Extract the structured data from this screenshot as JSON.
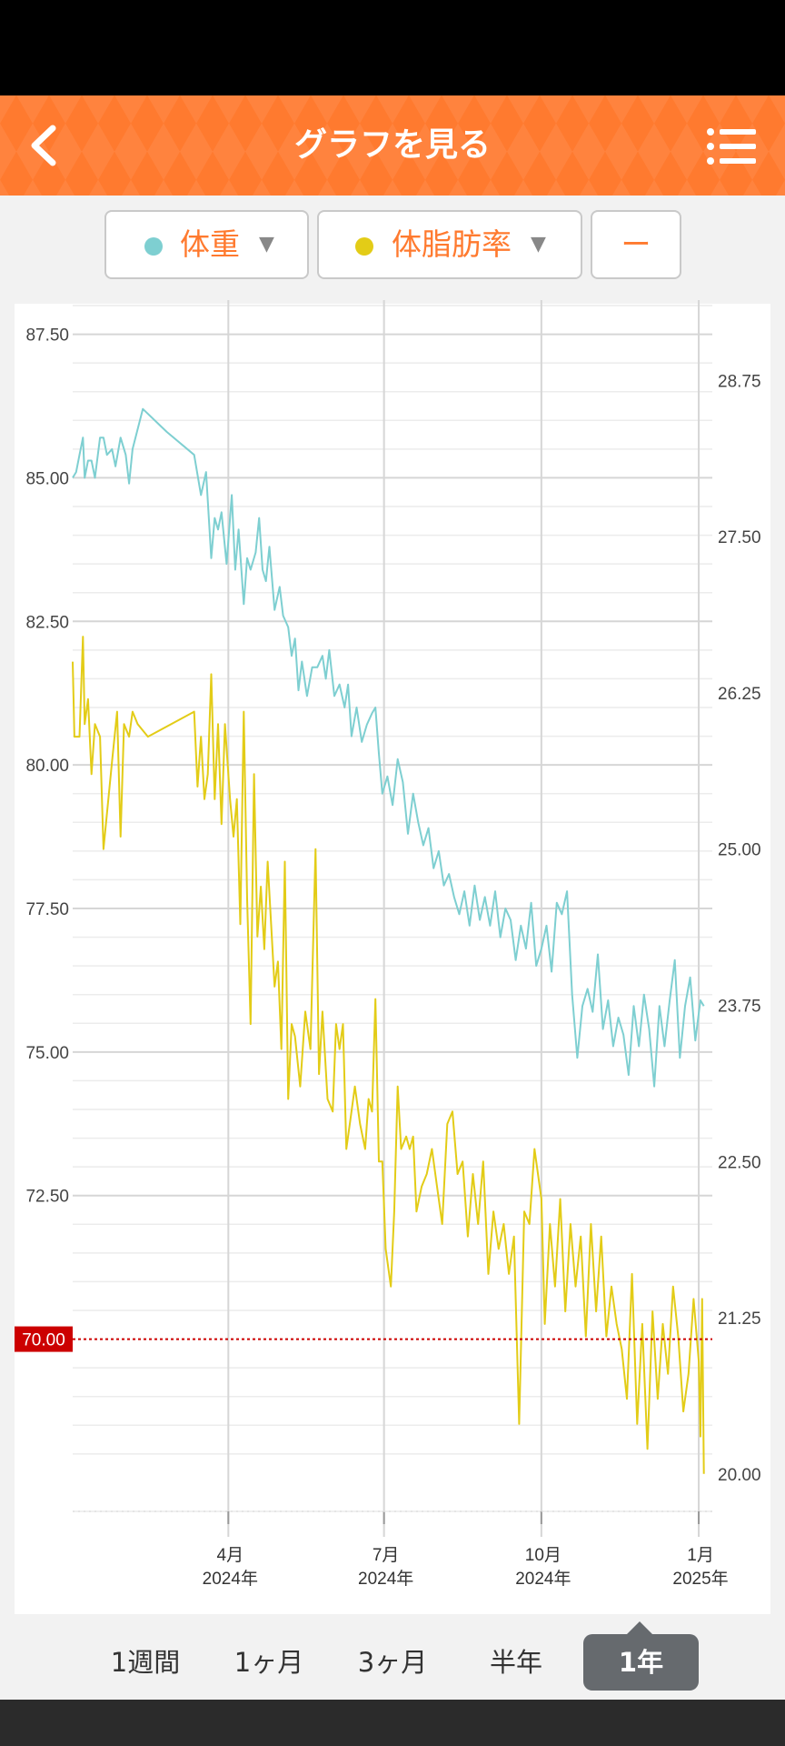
{
  "header": {
    "title": "グラフを見る",
    "back_icon": "chevron-left-icon",
    "menu_icon": "list-menu-icon",
    "color": "#ff7a2f"
  },
  "selectors": {
    "left": {
      "label": "体重",
      "dot_color": "#7ecfd1",
      "arrow": "▼"
    },
    "right": {
      "label": "体脂肪率",
      "dot_color": "#e3cc17",
      "arrow": "▼"
    },
    "third": {
      "label": "ー"
    }
  },
  "chart_data": {
    "type": "line",
    "x_axis": {
      "range": [
        "2024-01-01",
        "2025-01-10"
      ],
      "ticks": [
        {
          "date": "2024-04-01",
          "month": "4月",
          "year": "2024年"
        },
        {
          "date": "2024-07-01",
          "month": "7月",
          "year": "2024年"
        },
        {
          "date": "2024-10-01",
          "month": "10月",
          "year": "2024年"
        },
        {
          "date": "2025-01-01",
          "month": "1月",
          "year": "2025年"
        }
      ]
    },
    "y_left": {
      "range": [
        67.0,
        88.0
      ],
      "ticks": [
        "87.50",
        "85.00",
        "82.50",
        "80.00",
        "77.50",
        "75.00",
        "72.50",
        "70.00"
      ]
    },
    "y_right": {
      "range": [
        19.7,
        29.35
      ],
      "ticks": [
        "28.75",
        "27.50",
        "26.25",
        "25.00",
        "23.75",
        "22.50",
        "21.25",
        "20.00"
      ]
    },
    "target": {
      "value": 70.0,
      "label": "70.00",
      "color": "#cc0000"
    },
    "grid": true,
    "series": [
      {
        "name": "体重",
        "axis": "left",
        "color": "#7ecfd1",
        "points": [
          [
            "2024-01-01",
            85.0
          ],
          [
            "2024-01-03",
            85.1
          ],
          [
            "2024-01-05",
            85.4
          ],
          [
            "2024-01-07",
            85.7
          ],
          [
            "2024-01-08",
            85.0
          ],
          [
            "2024-01-10",
            85.3
          ],
          [
            "2024-01-12",
            85.3
          ],
          [
            "2024-01-14",
            85.0
          ],
          [
            "2024-01-17",
            85.7
          ],
          [
            "2024-01-19",
            85.7
          ],
          [
            "2024-01-21",
            85.4
          ],
          [
            "2024-01-24",
            85.5
          ],
          [
            "2024-01-26",
            85.2
          ],
          [
            "2024-01-29",
            85.7
          ],
          [
            "2024-02-01",
            85.4
          ],
          [
            "2024-02-03",
            84.9
          ],
          [
            "2024-02-05",
            85.5
          ],
          [
            "2024-02-11",
            86.2
          ],
          [
            "2024-02-25",
            85.8
          ],
          [
            "2024-03-12",
            85.4
          ],
          [
            "2024-03-16",
            84.7
          ],
          [
            "2024-03-19",
            85.1
          ],
          [
            "2024-03-22",
            83.6
          ],
          [
            "2024-03-24",
            84.3
          ],
          [
            "2024-03-26",
            84.1
          ],
          [
            "2024-03-28",
            84.4
          ],
          [
            "2024-03-31",
            83.5
          ],
          [
            "2024-04-03",
            84.7
          ],
          [
            "2024-04-05",
            83.4
          ],
          [
            "2024-04-07",
            84.1
          ],
          [
            "2024-04-10",
            82.8
          ],
          [
            "2024-04-12",
            83.6
          ],
          [
            "2024-04-14",
            83.4
          ],
          [
            "2024-04-17",
            83.7
          ],
          [
            "2024-04-19",
            84.3
          ],
          [
            "2024-04-21",
            83.4
          ],
          [
            "2024-04-23",
            83.2
          ],
          [
            "2024-04-25",
            83.8
          ],
          [
            "2024-04-28",
            82.7
          ],
          [
            "2024-05-01",
            83.1
          ],
          [
            "2024-05-03",
            82.6
          ],
          [
            "2024-05-06",
            82.4
          ],
          [
            "2024-05-08",
            81.9
          ],
          [
            "2024-05-10",
            82.2
          ],
          [
            "2024-05-12",
            81.3
          ],
          [
            "2024-05-14",
            81.8
          ],
          [
            "2024-05-17",
            81.2
          ],
          [
            "2024-05-20",
            81.7
          ],
          [
            "2024-05-23",
            81.7
          ],
          [
            "2024-05-26",
            81.9
          ],
          [
            "2024-05-28",
            81.5
          ],
          [
            "2024-05-30",
            82.0
          ],
          [
            "2024-06-02",
            81.2
          ],
          [
            "2024-06-05",
            81.4
          ],
          [
            "2024-06-08",
            81.0
          ],
          [
            "2024-06-10",
            81.4
          ],
          [
            "2024-06-12",
            80.5
          ],
          [
            "2024-06-15",
            81.0
          ],
          [
            "2024-06-18",
            80.4
          ],
          [
            "2024-06-21",
            80.7
          ],
          [
            "2024-06-24",
            80.9
          ],
          [
            "2024-06-26",
            81.0
          ],
          [
            "2024-06-28",
            80.2
          ],
          [
            "2024-06-30",
            79.5
          ],
          [
            "2024-07-03",
            79.8
          ],
          [
            "2024-07-06",
            79.3
          ],
          [
            "2024-07-09",
            80.1
          ],
          [
            "2024-07-12",
            79.7
          ],
          [
            "2024-07-15",
            78.8
          ],
          [
            "2024-07-18",
            79.5
          ],
          [
            "2024-07-21",
            79.0
          ],
          [
            "2024-07-24",
            78.6
          ],
          [
            "2024-07-27",
            78.9
          ],
          [
            "2024-07-30",
            78.2
          ],
          [
            "2024-08-02",
            78.5
          ],
          [
            "2024-08-05",
            77.9
          ],
          [
            "2024-08-08",
            78.1
          ],
          [
            "2024-08-11",
            77.7
          ],
          [
            "2024-08-14",
            77.4
          ],
          [
            "2024-08-17",
            77.8
          ],
          [
            "2024-08-20",
            77.2
          ],
          [
            "2024-08-23",
            77.9
          ],
          [
            "2024-08-26",
            77.3
          ],
          [
            "2024-08-29",
            77.7
          ],
          [
            "2024-09-01",
            77.2
          ],
          [
            "2024-09-04",
            77.8
          ],
          [
            "2024-09-07",
            77.0
          ],
          [
            "2024-09-10",
            77.5
          ],
          [
            "2024-09-13",
            77.3
          ],
          [
            "2024-09-16",
            76.6
          ],
          [
            "2024-09-19",
            77.2
          ],
          [
            "2024-09-22",
            76.8
          ],
          [
            "2024-09-25",
            77.6
          ],
          [
            "2024-09-28",
            76.5
          ],
          [
            "2024-10-01",
            76.8
          ],
          [
            "2024-10-04",
            77.2
          ],
          [
            "2024-10-07",
            76.4
          ],
          [
            "2024-10-10",
            77.6
          ],
          [
            "2024-10-13",
            77.4
          ],
          [
            "2024-10-16",
            77.8
          ],
          [
            "2024-10-19",
            76.0
          ],
          [
            "2024-10-22",
            74.9
          ],
          [
            "2024-10-25",
            75.8
          ],
          [
            "2024-10-28",
            76.1
          ],
          [
            "2024-10-31",
            75.7
          ],
          [
            "2024-11-03",
            76.7
          ],
          [
            "2024-11-06",
            75.4
          ],
          [
            "2024-11-09",
            75.9
          ],
          [
            "2024-11-12",
            75.1
          ],
          [
            "2024-11-15",
            75.6
          ],
          [
            "2024-11-18",
            75.3
          ],
          [
            "2024-11-21",
            74.6
          ],
          [
            "2024-11-24",
            75.8
          ],
          [
            "2024-11-27",
            75.1
          ],
          [
            "2024-11-30",
            76.0
          ],
          [
            "2024-12-03",
            75.4
          ],
          [
            "2024-12-06",
            74.4
          ],
          [
            "2024-12-09",
            75.8
          ],
          [
            "2024-12-12",
            75.1
          ],
          [
            "2024-12-15",
            75.9
          ],
          [
            "2024-12-18",
            76.6
          ],
          [
            "2024-12-21",
            74.9
          ],
          [
            "2024-12-24",
            75.8
          ],
          [
            "2024-12-27",
            76.3
          ],
          [
            "2024-12-30",
            75.2
          ],
          [
            "2025-01-02",
            75.9
          ],
          [
            "2025-01-04",
            75.8
          ]
        ]
      },
      {
        "name": "体脂肪率",
        "axis": "right",
        "color": "#e3cc17",
        "points": [
          [
            "2024-01-01",
            26.5
          ],
          [
            "2024-01-02",
            25.9
          ],
          [
            "2024-01-05",
            25.9
          ],
          [
            "2024-01-07",
            26.7
          ],
          [
            "2024-01-08",
            26.0
          ],
          [
            "2024-01-10",
            26.2
          ],
          [
            "2024-01-12",
            25.6
          ],
          [
            "2024-01-14",
            26.0
          ],
          [
            "2024-01-17",
            25.9
          ],
          [
            "2024-01-19",
            25.0
          ],
          [
            "2024-01-24",
            25.7
          ],
          [
            "2024-01-27",
            26.1
          ],
          [
            "2024-01-29",
            25.1
          ],
          [
            "2024-01-31",
            26.0
          ],
          [
            "2024-02-03",
            25.9
          ],
          [
            "2024-02-05",
            26.1
          ],
          [
            "2024-02-08",
            26.0
          ],
          [
            "2024-02-14",
            25.9
          ],
          [
            "2024-03-12",
            26.1
          ],
          [
            "2024-03-14",
            25.5
          ],
          [
            "2024-03-16",
            25.9
          ],
          [
            "2024-03-18",
            25.4
          ],
          [
            "2024-03-20",
            25.6
          ],
          [
            "2024-03-22",
            26.4
          ],
          [
            "2024-03-24",
            25.4
          ],
          [
            "2024-03-26",
            26.0
          ],
          [
            "2024-03-28",
            25.2
          ],
          [
            "2024-03-30",
            26.0
          ],
          [
            "2024-04-02",
            25.4
          ],
          [
            "2024-04-04",
            25.1
          ],
          [
            "2024-04-06",
            25.4
          ],
          [
            "2024-04-08",
            24.4
          ],
          [
            "2024-04-10",
            26.1
          ],
          [
            "2024-04-12",
            24.6
          ],
          [
            "2024-04-14",
            23.6
          ],
          [
            "2024-04-16",
            25.6
          ],
          [
            "2024-04-18",
            24.3
          ],
          [
            "2024-04-20",
            24.7
          ],
          [
            "2024-04-22",
            24.2
          ],
          [
            "2024-04-24",
            24.9
          ],
          [
            "2024-04-26",
            24.4
          ],
          [
            "2024-04-28",
            23.9
          ],
          [
            "2024-04-30",
            24.1
          ],
          [
            "2024-05-02",
            23.4
          ],
          [
            "2024-05-04",
            24.9
          ],
          [
            "2024-05-06",
            23.0
          ],
          [
            "2024-05-08",
            23.6
          ],
          [
            "2024-05-10",
            23.5
          ],
          [
            "2024-05-13",
            23.1
          ],
          [
            "2024-05-16",
            23.7
          ],
          [
            "2024-05-19",
            23.4
          ],
          [
            "2024-05-22",
            25.0
          ],
          [
            "2024-05-24",
            23.2
          ],
          [
            "2024-05-26",
            23.7
          ],
          [
            "2024-05-29",
            23.0
          ],
          [
            "2024-06-01",
            22.9
          ],
          [
            "2024-06-03",
            23.6
          ],
          [
            "2024-06-05",
            23.4
          ],
          [
            "2024-06-07",
            23.6
          ],
          [
            "2024-06-09",
            22.6
          ],
          [
            "2024-06-11",
            22.8
          ],
          [
            "2024-06-14",
            23.1
          ],
          [
            "2024-06-17",
            22.8
          ],
          [
            "2024-06-20",
            22.6
          ],
          [
            "2024-06-22",
            23.0
          ],
          [
            "2024-06-24",
            22.9
          ],
          [
            "2024-06-26",
            23.8
          ],
          [
            "2024-06-28",
            22.5
          ],
          [
            "2024-06-30",
            22.5
          ],
          [
            "2024-07-02",
            21.8
          ],
          [
            "2024-07-05",
            21.5
          ],
          [
            "2024-07-07",
            22.1
          ],
          [
            "2024-07-09",
            23.1
          ],
          [
            "2024-07-11",
            22.6
          ],
          [
            "2024-07-14",
            22.7
          ],
          [
            "2024-07-16",
            22.6
          ],
          [
            "2024-07-18",
            22.7
          ],
          [
            "2024-07-20",
            22.1
          ],
          [
            "2024-07-23",
            22.3
          ],
          [
            "2024-07-26",
            22.4
          ],
          [
            "2024-07-29",
            22.6
          ],
          [
            "2024-08-01",
            22.3
          ],
          [
            "2024-08-04",
            22.0
          ],
          [
            "2024-08-07",
            22.8
          ],
          [
            "2024-08-10",
            22.9
          ],
          [
            "2024-08-13",
            22.4
          ],
          [
            "2024-08-16",
            22.5
          ],
          [
            "2024-08-19",
            21.9
          ],
          [
            "2024-08-22",
            22.4
          ],
          [
            "2024-08-25",
            22.0
          ],
          [
            "2024-08-28",
            22.5
          ],
          [
            "2024-08-31",
            21.6
          ],
          [
            "2024-09-03",
            22.1
          ],
          [
            "2024-09-06",
            21.8
          ],
          [
            "2024-09-09",
            22.0
          ],
          [
            "2024-09-12",
            21.6
          ],
          [
            "2024-09-15",
            21.9
          ],
          [
            "2024-09-18",
            20.4
          ],
          [
            "2024-09-21",
            22.1
          ],
          [
            "2024-09-24",
            22.0
          ],
          [
            "2024-09-27",
            22.6
          ],
          [
            "2024-10-01",
            22.2
          ],
          [
            "2024-10-03",
            21.2
          ],
          [
            "2024-10-06",
            22.0
          ],
          [
            "2024-10-09",
            21.5
          ],
          [
            "2024-10-12",
            22.2
          ],
          [
            "2024-10-15",
            21.3
          ],
          [
            "2024-10-18",
            22.0
          ],
          [
            "2024-10-21",
            21.5
          ],
          [
            "2024-10-24",
            21.9
          ],
          [
            "2024-10-27",
            21.1
          ],
          [
            "2024-10-30",
            22.0
          ],
          [
            "2024-11-02",
            21.3
          ],
          [
            "2024-11-05",
            21.9
          ],
          [
            "2024-11-08",
            21.1
          ],
          [
            "2024-11-11",
            21.5
          ],
          [
            "2024-11-14",
            21.2
          ],
          [
            "2024-11-17",
            21.0
          ],
          [
            "2024-11-20",
            20.6
          ],
          [
            "2024-11-23",
            21.6
          ],
          [
            "2024-11-26",
            20.4
          ],
          [
            "2024-11-29",
            21.2
          ],
          [
            "2024-12-02",
            20.2
          ],
          [
            "2024-12-05",
            21.3
          ],
          [
            "2024-12-08",
            20.6
          ],
          [
            "2024-12-11",
            21.2
          ],
          [
            "2024-12-14",
            20.8
          ],
          [
            "2024-12-17",
            21.5
          ],
          [
            "2024-12-20",
            21.1
          ],
          [
            "2024-12-23",
            20.5
          ],
          [
            "2024-12-26",
            20.8
          ],
          [
            "2024-12-29",
            21.4
          ],
          [
            "2025-01-01",
            20.9
          ],
          [
            "2025-01-02",
            20.3
          ],
          [
            "2025-01-03",
            21.4
          ],
          [
            "2025-01-04",
            20.0
          ]
        ]
      }
    ]
  },
  "periods": {
    "week": "1週間",
    "month1": "1ヶ月",
    "month3": "3ヶ月",
    "half": "半年",
    "year": "1年"
  },
  "active_period": "1年"
}
